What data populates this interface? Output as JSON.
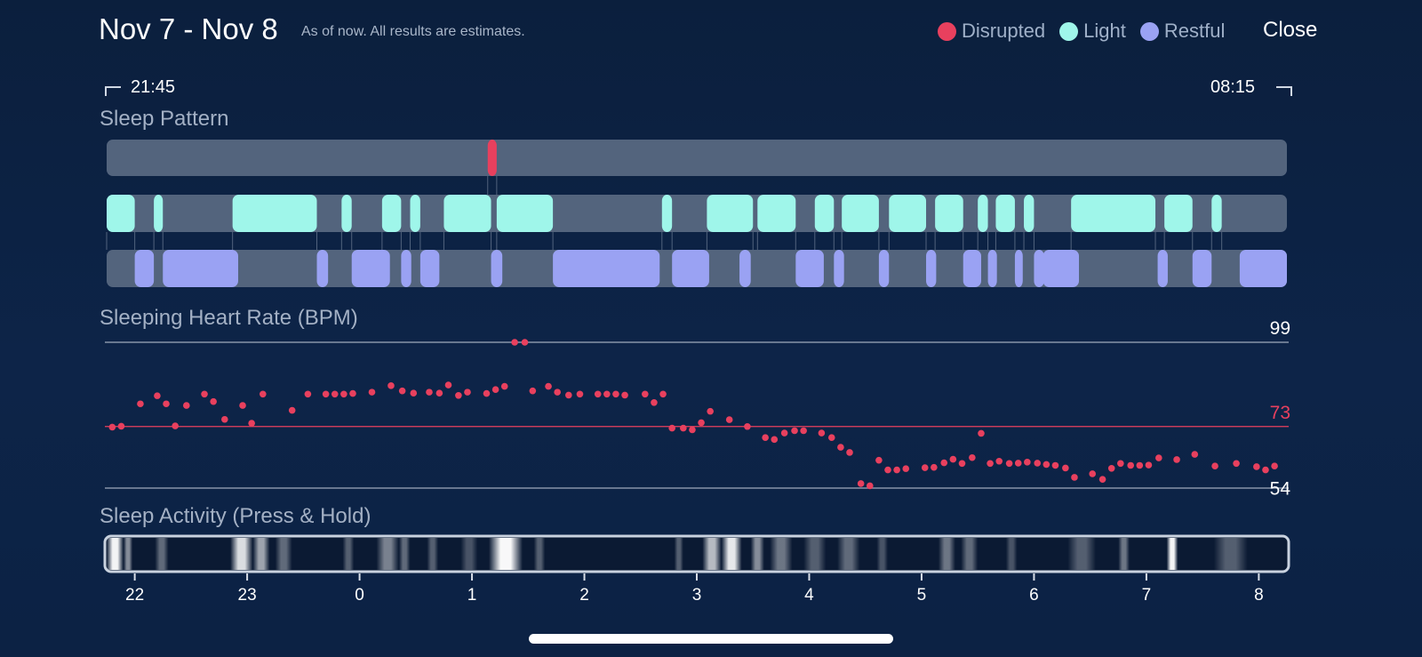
{
  "header": {
    "title": "Nov 7 - Nov 8",
    "note": "As of now. All results are estimates.",
    "close_label": "Close"
  },
  "legend": [
    {
      "label": "Disrupted",
      "color": "#e8405e"
    },
    {
      "label": "Light",
      "color": "#9ff6ea"
    },
    {
      "label": "Restful",
      "color": "#9aa2f3"
    }
  ],
  "timeline": {
    "start": "21:45",
    "end": "08:15"
  },
  "sections": {
    "pattern_title": "Sleep Pattern",
    "hr_title": "Sleeping Heart Rate (BPM)",
    "activity_title": "Sleep Activity (Press & Hold)"
  },
  "colors": {
    "disrupted": "#e8405e",
    "light": "#9ff6ea",
    "restful": "#9aa2f3",
    "track": "#53647d",
    "hr_point": "#e8405e"
  },
  "chart_data": [
    {
      "type": "timeline",
      "title": "Sleep Pattern",
      "x_unit": "hours since 21:00",
      "xlim": [
        0.75,
        11.25
      ],
      "disrupted": [
        [
          4.14,
          4.22
        ]
      ],
      "light": [
        [
          0.75,
          1.0
        ],
        [
          1.17,
          1.25
        ],
        [
          1.87,
          2.62
        ],
        [
          2.84,
          2.93
        ],
        [
          3.2,
          3.37
        ],
        [
          3.45,
          3.54
        ],
        [
          3.75,
          4.17
        ],
        [
          4.22,
          4.72
        ],
        [
          5.69,
          5.78
        ],
        [
          6.09,
          6.5
        ],
        [
          6.54,
          6.88
        ],
        [
          7.05,
          7.22
        ],
        [
          7.29,
          7.62
        ],
        [
          7.71,
          8.04
        ],
        [
          8.12,
          8.37
        ],
        [
          8.5,
          8.59
        ],
        [
          8.66,
          8.83
        ],
        [
          8.91,
          9.0
        ],
        [
          9.33,
          10.08
        ],
        [
          10.16,
          10.41
        ],
        [
          10.58,
          10.67
        ]
      ],
      "restful": [
        [
          1.0,
          1.17
        ],
        [
          1.25,
          1.92
        ],
        [
          2.62,
          2.72
        ],
        [
          2.93,
          3.27
        ],
        [
          3.37,
          3.46
        ],
        [
          3.54,
          3.71
        ],
        [
          4.17,
          4.27
        ],
        [
          4.72,
          5.67
        ],
        [
          5.78,
          6.11
        ],
        [
          6.38,
          6.48
        ],
        [
          6.88,
          7.13
        ],
        [
          7.22,
          7.31
        ],
        [
          7.62,
          7.71
        ],
        [
          8.04,
          8.13
        ],
        [
          8.37,
          8.53
        ],
        [
          8.59,
          8.67
        ],
        [
          8.83,
          8.9
        ],
        [
          9.0,
          9.09
        ],
        [
          9.08,
          9.4
        ],
        [
          10.1,
          10.19
        ],
        [
          10.41,
          10.58
        ],
        [
          10.83,
          11.25
        ]
      ]
    },
    {
      "type": "scatter",
      "title": "Sleeping Heart Rate (BPM)",
      "x_unit": "hours since 21:00",
      "xlim": [
        0.75,
        11.25
      ],
      "ylim": [
        54,
        99
      ],
      "reference_lines": [
        99,
        73,
        54
      ],
      "reference_labels": [
        "99",
        "73",
        "54"
      ],
      "x": [
        0.8,
        0.88,
        1.05,
        1.2,
        1.28,
        1.36,
        1.46,
        1.62,
        1.7,
        1.8,
        1.96,
        2.04,
        2.14,
        2.4,
        2.54,
        2.7,
        2.78,
        2.86,
        2.94,
        3.11,
        3.28,
        3.38,
        3.48,
        3.62,
        3.71,
        3.79,
        3.88,
        3.96,
        4.13,
        4.21,
        4.29,
        4.38,
        4.47,
        4.54,
        4.68,
        4.76,
        4.86,
        4.96,
        5.12,
        5.2,
        5.28,
        5.36,
        5.54,
        5.62,
        5.7,
        5.78,
        5.88,
        5.96,
        6.04,
        6.12,
        6.29,
        6.45,
        6.61,
        6.69,
        6.78,
        6.87,
        6.95,
        7.11,
        7.2,
        7.28,
        7.36,
        7.46,
        7.54,
        7.62,
        7.7,
        7.78,
        7.86,
        8.03,
        8.11,
        8.2,
        8.28,
        8.36,
        8.45,
        8.53,
        8.61,
        8.69,
        8.78,
        8.86,
        8.94,
        9.03,
        9.11,
        9.19,
        9.28,
        9.36,
        9.52,
        9.61,
        9.69,
        9.77,
        9.86,
        9.94,
        10.02,
        10.11,
        10.27,
        10.43,
        10.61,
        10.8,
        10.98,
        11.06,
        11.14
      ],
      "y": [
        72.8,
        73.1,
        80,
        82.5,
        80,
        73.2,
        79.5,
        83,
        80.7,
        75.2,
        79.5,
        74,
        83,
        78,
        83,
        83,
        83,
        83,
        83.2,
        83.6,
        85.6,
        84,
        83.3,
        83.6,
        83.3,
        85.8,
        82.6,
        83.6,
        83.2,
        84.4,
        85.4,
        99,
        99,
        84,
        85.4,
        83.6,
        82.7,
        83,
        83,
        83,
        83,
        82.7,
        83,
        80.4,
        83,
        72.5,
        72.5,
        72,
        74.2,
        77.7,
        75.1,
        73,
        69.6,
        69,
        71,
        71.7,
        71.7,
        71,
        69.6,
        66.6,
        65,
        55.4,
        54.7,
        62.6,
        59.6,
        59.6,
        60,
        60.3,
        60.4,
        61.8,
        62.9,
        61.6,
        63.4,
        70.9,
        61.6,
        62.3,
        61.6,
        61.7,
        62,
        61.7,
        61.3,
        61,
        60.2,
        57.3,
        58.4,
        56.7,
        60.1,
        61.6,
        61,
        61,
        61.1,
        63.3,
        62.8,
        64.4,
        60.8,
        61.6,
        60.6,
        59.6,
        60.8
      ]
    },
    {
      "type": "heatmap",
      "title": "Sleep Activity (Press & Hold)",
      "x_unit": "hours since 21:00",
      "xlim": [
        0.75,
        11.25
      ],
      "x_ticks": [
        1,
        2,
        3,
        4,
        5,
        6,
        7,
        8,
        9,
        10,
        11
      ],
      "x_tick_labels": [
        "22",
        "23",
        "0",
        "1",
        "2",
        "3",
        "4",
        "5",
        "6",
        "7",
        "8"
      ],
      "bands": [
        [
          0.75,
          0.9,
          0.95
        ],
        [
          0.9,
          0.98,
          0.5
        ],
        [
          1.18,
          1.3,
          0.35
        ],
        [
          1.85,
          2.05,
          0.85
        ],
        [
          2.05,
          2.2,
          0.6
        ],
        [
          2.25,
          2.4,
          0.35
        ],
        [
          2.85,
          2.95,
          0.3
        ],
        [
          3.15,
          3.35,
          0.45
        ],
        [
          3.35,
          3.45,
          0.35
        ],
        [
          3.6,
          3.7,
          0.3
        ],
        [
          3.9,
          4.05,
          0.25
        ],
        [
          4.15,
          4.45,
          0.97
        ],
        [
          4.55,
          4.65,
          0.3
        ],
        [
          5.8,
          5.88,
          0.3
        ],
        [
          6.05,
          6.22,
          0.7
        ],
        [
          6.22,
          6.4,
          0.9
        ],
        [
          6.48,
          6.6,
          0.5
        ],
        [
          6.65,
          6.85,
          0.4
        ],
        [
          6.95,
          7.15,
          0.3
        ],
        [
          7.25,
          7.45,
          0.35
        ],
        [
          7.6,
          7.7,
          0.25
        ],
        [
          8.15,
          8.3,
          0.4
        ],
        [
          8.35,
          8.5,
          0.35
        ],
        [
          8.75,
          8.85,
          0.25
        ],
        [
          9.3,
          9.55,
          0.3
        ],
        [
          9.75,
          9.85,
          0.4
        ],
        [
          10.18,
          10.28,
          0.95
        ],
        [
          10.6,
          10.9,
          0.3
        ]
      ]
    }
  ]
}
